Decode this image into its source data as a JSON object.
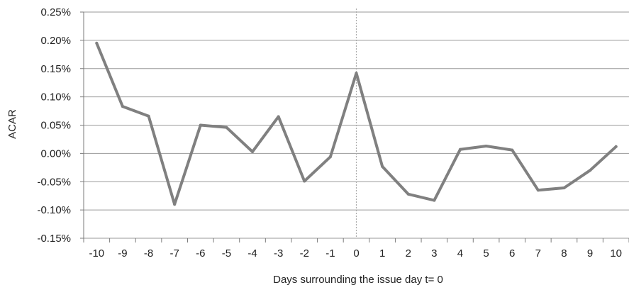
{
  "chart_data": {
    "type": "line",
    "title": "",
    "xlabel": "Days surrounding the issue day t= 0",
    "ylabel": "ACAR",
    "x": [
      -10,
      -9,
      -8,
      -7,
      -6,
      -5,
      -4,
      -3,
      -2,
      -1,
      0,
      1,
      2,
      3,
      4,
      5,
      6,
      7,
      8,
      9,
      10
    ],
    "x_tick_labels": [
      "-10",
      "-9",
      "-8",
      "-7",
      "-6",
      "-5",
      "-4",
      "-3",
      "-2",
      "-1",
      "0",
      "1",
      "2",
      "3",
      "4",
      "5",
      "6",
      "7",
      "8",
      "9",
      "10"
    ],
    "y_tick_values": [
      0.25,
      0.2,
      0.15,
      0.1,
      0.05,
      0.0,
      -0.05,
      -0.1,
      -0.15
    ],
    "y_tick_labels": [
      "0.25%",
      "0.20%",
      "0.15%",
      "0.10%",
      "0.05%",
      "0.00%",
      "-0.05%",
      "-0.10%",
      "-0.15%"
    ],
    "ylim": [
      -0.15,
      0.25
    ],
    "y_unit": "%",
    "grid": true,
    "reference_line_x": 0,
    "series": [
      {
        "values": [
          0.195,
          0.083,
          0.066,
          -0.09,
          0.05,
          0.046,
          0.003,
          0.065,
          -0.049,
          -0.006,
          0.142,
          -0.023,
          -0.072,
          -0.083,
          0.007,
          0.013,
          0.006,
          -0.065,
          -0.061,
          -0.03,
          0.012
        ]
      }
    ],
    "colors": {
      "line": "#808080",
      "grid": "#9a9a9a",
      "reference": "#aaaaaa"
    }
  }
}
